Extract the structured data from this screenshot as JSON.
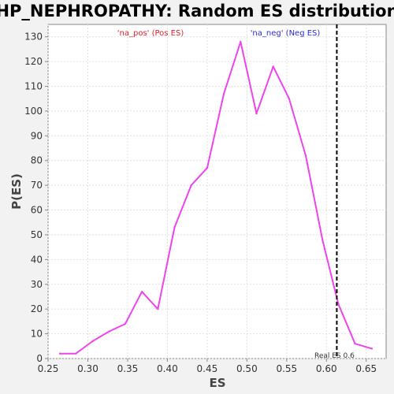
{
  "chart_data": {
    "type": "line",
    "title": "HP_NEPHROPATHY: Random ES distribution",
    "xlabel": "ES",
    "ylabel": "P(ES)",
    "xlim": [
      0.25,
      0.675
    ],
    "ylim": [
      0,
      135
    ],
    "xticks": [
      0.25,
      0.3,
      0.35,
      0.4,
      0.45,
      0.5,
      0.55,
      0.6,
      0.65
    ],
    "xtick_labels": [
      "0.25",
      "0.30",
      "0.35",
      "0.40",
      "0.45",
      "0.50",
      "0.55",
      "0.60",
      "0.65"
    ],
    "yticks": [
      0,
      10,
      20,
      30,
      40,
      50,
      60,
      70,
      80,
      90,
      100,
      110,
      120,
      130
    ],
    "grid": true,
    "series": [
      {
        "name": "Random ES",
        "color": "#ee44ee",
        "x": [
          0.265,
          0.285,
          0.306,
          0.327,
          0.347,
          0.368,
          0.388,
          0.409,
          0.43,
          0.45,
          0.471,
          0.492,
          0.512,
          0.533,
          0.553,
          0.574,
          0.595,
          0.615,
          0.636,
          0.657
        ],
        "y": [
          2,
          2,
          7,
          11,
          14,
          27,
          20,
          53,
          70,
          77,
          107,
          128,
          99,
          118,
          105,
          82,
          48,
          22,
          6,
          4
        ]
      }
    ],
    "legend": [
      {
        "label": "'na_pos' (Pos ES)",
        "color": "#e8202a"
      },
      {
        "label": "'na_neg' (Neg ES)",
        "color": "#2a2ae0"
      }
    ],
    "marker": {
      "x": 0.613,
      "label": "Real ES 0.6"
    }
  }
}
